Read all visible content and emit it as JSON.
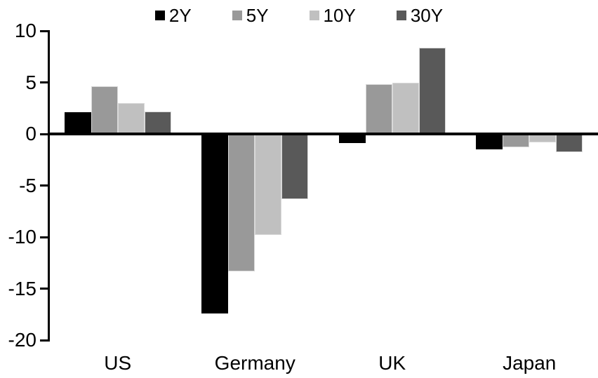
{
  "chart_data": {
    "type": "bar",
    "title": "",
    "categories": [
      "US",
      "Germany",
      "UK",
      "Japan"
    ],
    "series": [
      {
        "name": "2Y",
        "color": "#000000",
        "values": [
          2.1,
          -17.4,
          -0.9,
          -1.5
        ]
      },
      {
        "name": "5Y",
        "color": "#999999",
        "values": [
          4.6,
          -13.3,
          4.8,
          -1.3
        ]
      },
      {
        "name": "10Y",
        "color": "#c0c0c0",
        "values": [
          3.0,
          -9.8,
          5.0,
          -0.8
        ]
      },
      {
        "name": "30Y",
        "color": "#595959",
        "values": [
          2.2,
          -6.3,
          8.4,
          -1.8
        ]
      }
    ],
    "ylim": [
      -20,
      10
    ],
    "y_ticks": [
      10,
      5,
      0,
      -5,
      -10,
      -15,
      -20
    ],
    "legend_position": "top",
    "grid": false,
    "axis_color": "#000000",
    "background": "#ffffff"
  }
}
